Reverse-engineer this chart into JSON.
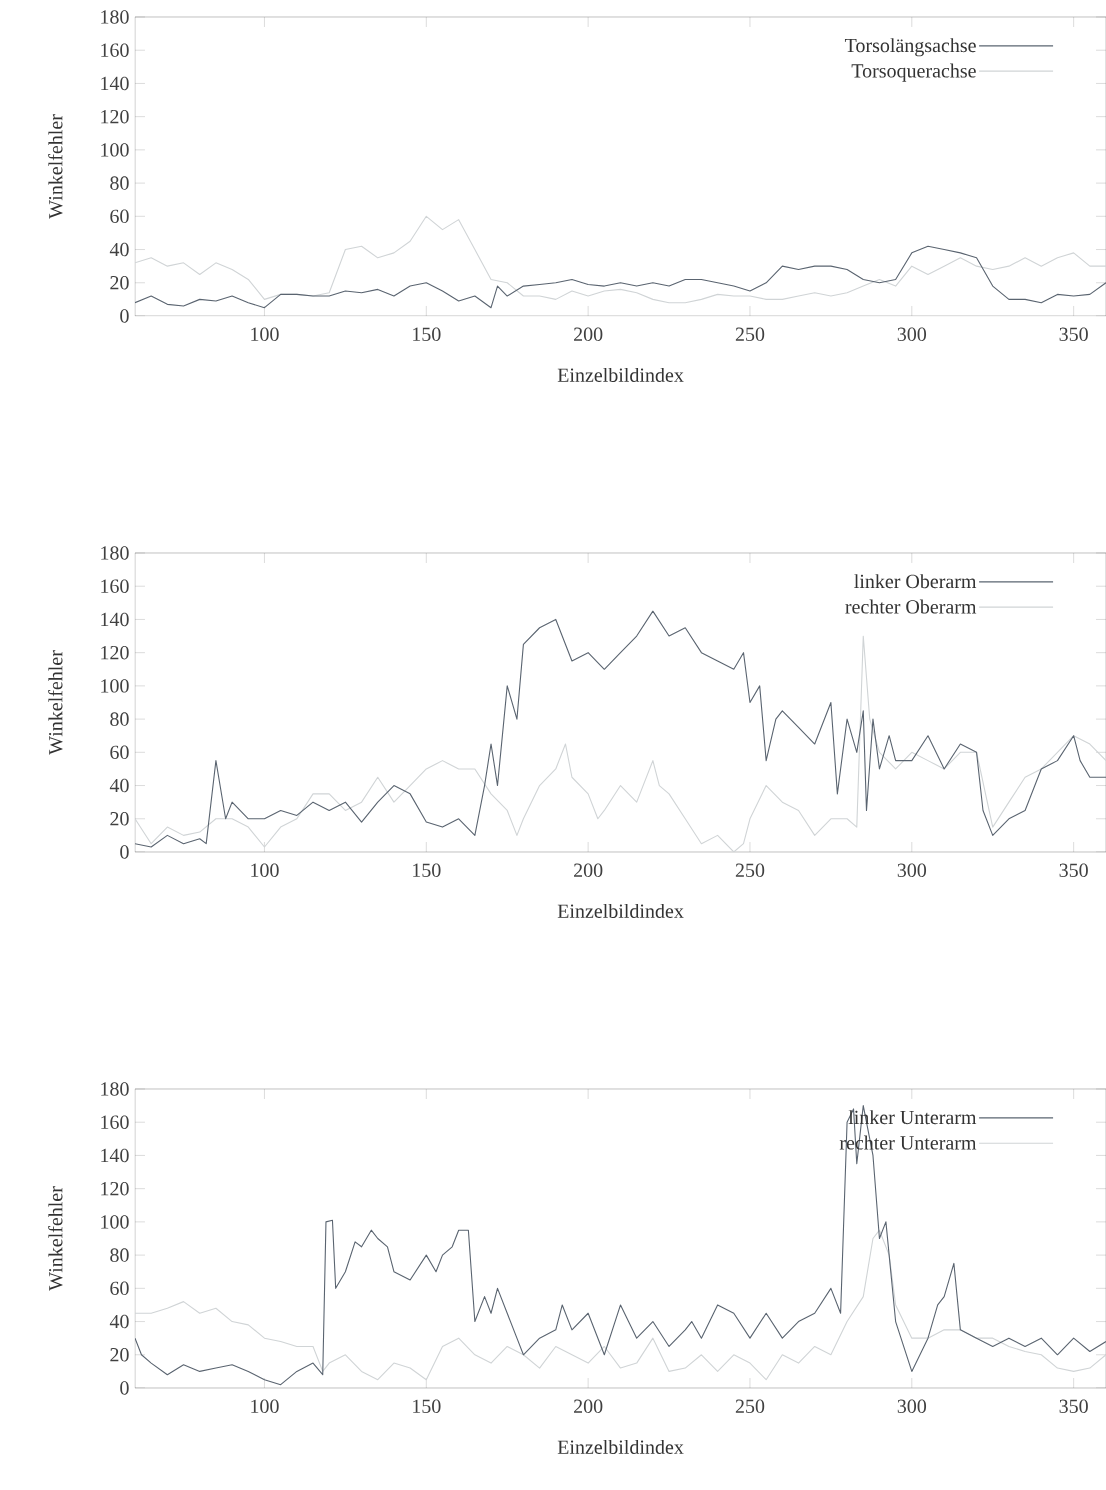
{
  "chart_data": [
    {
      "type": "line",
      "xlabel": "Einzelbildindex",
      "ylabel": "Winkelfehler",
      "xlim": [
        60,
        360
      ],
      "xticks": [
        100,
        150,
        200,
        250,
        300,
        350
      ],
      "ylim": [
        0,
        180
      ],
      "yticks": [
        0,
        20,
        40,
        60,
        80,
        100,
        120,
        140,
        160,
        180
      ],
      "legend": "top right",
      "series": [
        {
          "name": "Torsolängsachse",
          "color": "#5a6470",
          "x": [
            60,
            65,
            70,
            75,
            80,
            85,
            90,
            95,
            100,
            105,
            110,
            115,
            120,
            125,
            130,
            135,
            140,
            145,
            150,
            155,
            160,
            165,
            170,
            172,
            175,
            180,
            185,
            190,
            195,
            200,
            205,
            210,
            215,
            220,
            225,
            230,
            235,
            240,
            245,
            250,
            255,
            260,
            265,
            270,
            275,
            280,
            285,
            290,
            295,
            300,
            305,
            310,
            315,
            320,
            325,
            330,
            335,
            340,
            345,
            350,
            355,
            360
          ],
          "values": [
            8,
            12,
            7,
            6,
            10,
            9,
            12,
            8,
            5,
            13,
            13,
            12,
            12,
            15,
            14,
            16,
            12,
            18,
            20,
            15,
            9,
            12,
            5,
            18,
            12,
            18,
            19,
            20,
            22,
            19,
            18,
            20,
            18,
            20,
            18,
            22,
            22,
            20,
            18,
            15,
            20,
            30,
            28,
            30,
            30,
            28,
            22,
            20,
            22,
            38,
            42,
            40,
            38,
            35,
            18,
            10,
            10,
            8,
            13,
            12,
            13,
            20
          ]
        },
        {
          "name": "Torsoquerachse",
          "color": "#d0d4d6",
          "x": [
            60,
            65,
            70,
            75,
            80,
            85,
            90,
            95,
            100,
            105,
            110,
            115,
            120,
            125,
            130,
            135,
            140,
            145,
            150,
            155,
            160,
            165,
            170,
            175,
            180,
            185,
            190,
            195,
            200,
            205,
            210,
            215,
            220,
            225,
            230,
            235,
            240,
            245,
            250,
            255,
            260,
            265,
            270,
            275,
            280,
            285,
            290,
            295,
            300,
            305,
            310,
            315,
            320,
            325,
            330,
            335,
            340,
            345,
            350,
            355,
            360
          ],
          "values": [
            32,
            35,
            30,
            32,
            25,
            32,
            28,
            22,
            10,
            13,
            13,
            12,
            14,
            40,
            42,
            35,
            38,
            45,
            60,
            52,
            58,
            40,
            22,
            20,
            12,
            12,
            10,
            15,
            12,
            15,
            16,
            14,
            10,
            8,
            8,
            10,
            13,
            12,
            12,
            10,
            10,
            12,
            14,
            12,
            14,
            18,
            22,
            18,
            30,
            25,
            30,
            35,
            30,
            28,
            30,
            35,
            30,
            35,
            38,
            30,
            30
          ]
        }
      ]
    },
    {
      "type": "line",
      "xlabel": "Einzelbildindex",
      "ylabel": "Winkelfehler",
      "xlim": [
        60,
        360
      ],
      "xticks": [
        100,
        150,
        200,
        250,
        300,
        350
      ],
      "ylim": [
        0,
        180
      ],
      "yticks": [
        0,
        20,
        40,
        60,
        80,
        100,
        120,
        140,
        160,
        180
      ],
      "legend": "top right",
      "series": [
        {
          "name": "linker Oberarm",
          "color": "#5a6470",
          "x": [
            60,
            65,
            70,
            75,
            80,
            82,
            85,
            88,
            90,
            95,
            100,
            105,
            110,
            115,
            120,
            125,
            130,
            135,
            140,
            145,
            150,
            155,
            160,
            165,
            168,
            170,
            172,
            175,
            178,
            180,
            185,
            190,
            195,
            200,
            205,
            210,
            215,
            220,
            225,
            230,
            235,
            240,
            245,
            248,
            250,
            253,
            255,
            258,
            260,
            265,
            270,
            275,
            277,
            280,
            283,
            285,
            286,
            288,
            290,
            293,
            295,
            300,
            305,
            310,
            315,
            320,
            322,
            325,
            330,
            335,
            340,
            345,
            350,
            352,
            355,
            360
          ],
          "values": [
            5,
            3,
            10,
            5,
            8,
            5,
            55,
            20,
            30,
            20,
            20,
            25,
            22,
            30,
            25,
            30,
            18,
            30,
            40,
            35,
            18,
            15,
            20,
            10,
            40,
            65,
            40,
            100,
            80,
            125,
            135,
            140,
            115,
            120,
            110,
            120,
            130,
            145,
            130,
            135,
            120,
            115,
            110,
            120,
            90,
            100,
            55,
            80,
            85,
            75,
            65,
            90,
            35,
            80,
            60,
            85,
            25,
            80,
            50,
            70,
            55,
            55,
            70,
            50,
            65,
            60,
            25,
            10,
            20,
            25,
            50,
            55,
            70,
            55,
            45,
            45
          ]
        },
        {
          "name": "rechter Oberarm",
          "color": "#d0d4d6",
          "x": [
            60,
            65,
            70,
            75,
            80,
            85,
            90,
            95,
            100,
            105,
            110,
            115,
            120,
            125,
            130,
            135,
            140,
            145,
            150,
            155,
            160,
            165,
            170,
            175,
            178,
            180,
            185,
            190,
            193,
            195,
            200,
            203,
            205,
            210,
            215,
            220,
            222,
            225,
            230,
            235,
            240,
            245,
            248,
            250,
            255,
            260,
            265,
            270,
            275,
            280,
            283,
            285,
            287,
            290,
            295,
            300,
            305,
            310,
            315,
            320,
            325,
            330,
            335,
            340,
            345,
            350,
            355,
            360
          ],
          "values": [
            20,
            5,
            15,
            10,
            12,
            20,
            20,
            15,
            3,
            15,
            20,
            35,
            35,
            25,
            30,
            45,
            30,
            40,
            50,
            55,
            50,
            50,
            35,
            25,
            10,
            20,
            40,
            50,
            65,
            45,
            35,
            20,
            25,
            40,
            30,
            55,
            40,
            35,
            20,
            5,
            10,
            0,
            5,
            20,
            40,
            30,
            25,
            10,
            20,
            20,
            15,
            130,
            80,
            60,
            50,
            60,
            55,
            50,
            60,
            60,
            15,
            30,
            45,
            50,
            60,
            70,
            65,
            55
          ]
        }
      ]
    },
    {
      "type": "line",
      "xlabel": "Einzelbildindex",
      "ylabel": "Winkelfehler",
      "xlim": [
        60,
        360
      ],
      "xticks": [
        100,
        150,
        200,
        250,
        300,
        350
      ],
      "ylim": [
        0,
        180
      ],
      "yticks": [
        0,
        20,
        40,
        60,
        80,
        100,
        120,
        140,
        160,
        180
      ],
      "legend": "top right",
      "series": [
        {
          "name": "linker Unterarm",
          "color": "#5a6470",
          "x": [
            60,
            62,
            65,
            70,
            75,
            80,
            85,
            90,
            95,
            100,
            105,
            110,
            115,
            118,
            119,
            121,
            122,
            125,
            128,
            130,
            133,
            135,
            138,
            140,
            145,
            150,
            153,
            155,
            158,
            160,
            163,
            165,
            168,
            170,
            172,
            175,
            178,
            180,
            185,
            190,
            192,
            195,
            200,
            205,
            210,
            215,
            220,
            225,
            230,
            232,
            235,
            240,
            245,
            250,
            255,
            260,
            265,
            270,
            275,
            278,
            280,
            282,
            283,
            285,
            288,
            290,
            292,
            295,
            300,
            305,
            308,
            310,
            313,
            315,
            320,
            325,
            330,
            335,
            340,
            345,
            350,
            355,
            360
          ],
          "values": [
            30,
            20,
            15,
            8,
            14,
            10,
            12,
            14,
            10,
            5,
            2,
            10,
            15,
            8,
            100,
            101,
            60,
            70,
            88,
            85,
            95,
            90,
            85,
            70,
            65,
            80,
            70,
            80,
            85,
            95,
            95,
            40,
            55,
            45,
            60,
            45,
            30,
            20,
            30,
            35,
            50,
            35,
            45,
            20,
            50,
            30,
            40,
            25,
            35,
            40,
            30,
            50,
            45,
            30,
            45,
            30,
            40,
            45,
            60,
            45,
            160,
            168,
            135,
            170,
            140,
            90,
            100,
            40,
            10,
            30,
            50,
            55,
            75,
            35,
            30,
            25,
            30,
            25,
            30,
            20,
            30,
            22,
            28
          ]
        },
        {
          "name": "rechter Unterarm",
          "color": "#d0d4d6",
          "x": [
            60,
            65,
            70,
            75,
            80,
            85,
            90,
            95,
            100,
            105,
            110,
            115,
            118,
            120,
            125,
            130,
            135,
            140,
            145,
            150,
            155,
            160,
            165,
            170,
            175,
            180,
            185,
            190,
            195,
            200,
            205,
            210,
            215,
            220,
            225,
            230,
            235,
            240,
            245,
            250,
            255,
            260,
            265,
            270,
            275,
            280,
            285,
            288,
            290,
            293,
            295,
            300,
            305,
            310,
            315,
            320,
            325,
            330,
            335,
            340,
            345,
            350,
            355,
            360
          ],
          "values": [
            45,
            45,
            48,
            52,
            45,
            48,
            40,
            38,
            30,
            28,
            25,
            25,
            10,
            15,
            20,
            10,
            5,
            15,
            12,
            5,
            25,
            30,
            20,
            15,
            25,
            20,
            12,
            25,
            20,
            15,
            25,
            12,
            15,
            30,
            10,
            12,
            20,
            10,
            20,
            15,
            5,
            20,
            15,
            25,
            20,
            40,
            55,
            90,
            95,
            80,
            50,
            30,
            30,
            35,
            35,
            30,
            30,
            25,
            22,
            20,
            12,
            10,
            12,
            20
          ]
        }
      ]
    }
  ]
}
